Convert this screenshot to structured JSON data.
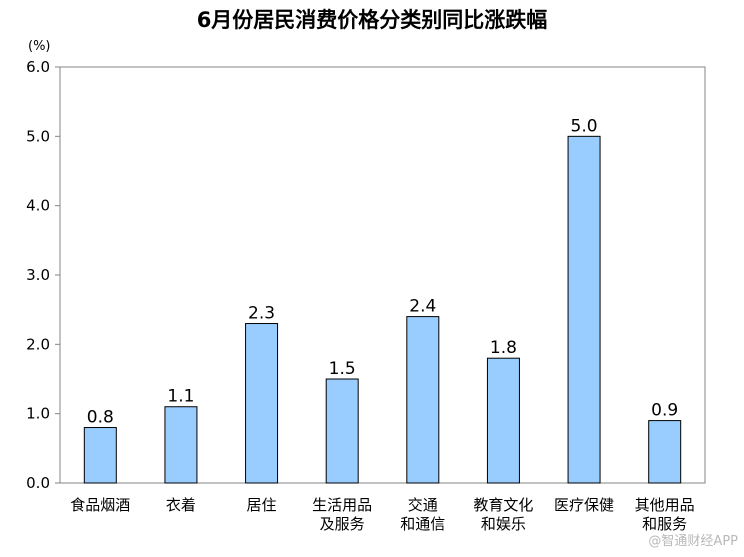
{
  "chart_data": {
    "type": "bar",
    "title": "6月份居民消费价格分类别同比涨跌幅",
    "ylabel": "(%)",
    "xlabel": "",
    "ylim": [
      0,
      6
    ],
    "yticks": [
      "0.0",
      "1.0",
      "2.0",
      "3.0",
      "4.0",
      "5.0",
      "6.0"
    ],
    "categories": [
      [
        "食品烟酒"
      ],
      [
        "衣着"
      ],
      [
        "居住"
      ],
      [
        "生活用品",
        "及服务"
      ],
      [
        "交通",
        "和通信"
      ],
      [
        "教育文化",
        "和娱乐"
      ],
      [
        "医疗保健"
      ],
      [
        "其他用品",
        "和服务"
      ]
    ],
    "values": [
      0.8,
      1.1,
      2.3,
      1.5,
      2.4,
      1.8,
      5.0,
      0.9
    ],
    "value_labels": [
      "0.8",
      "1.1",
      "2.3",
      "1.5",
      "2.4",
      "1.8",
      "5.0",
      "0.9"
    ],
    "bar_color": "#99ccff",
    "bar_edge_color": "#000000",
    "grid": false,
    "legend": "none"
  },
  "watermark": "@智通财经APP"
}
